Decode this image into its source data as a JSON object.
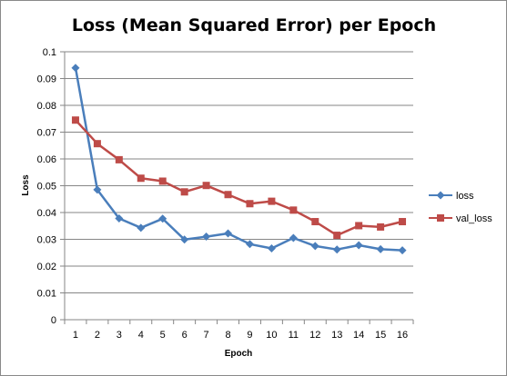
{
  "chart_data": {
    "type": "line",
    "title": "Loss (Mean Squared Error) per Epoch",
    "xlabel": "Epoch",
    "ylabel": "Loss",
    "x": [
      1,
      2,
      3,
      4,
      5,
      6,
      7,
      8,
      9,
      10,
      11,
      12,
      13,
      14,
      15,
      16
    ],
    "ylim": [
      0,
      0.1
    ],
    "yticks": [
      "0",
      "0.01",
      "0.02",
      "0.03",
      "0.04",
      "0.05",
      "0.06",
      "0.07",
      "0.08",
      "0.09",
      "0.1"
    ],
    "grid": "horizontal",
    "legend_position": "right",
    "series": [
      {
        "name": "loss",
        "color": "#4a7ebb",
        "marker": "diamond",
        "values": [
          0.094,
          0.0485,
          0.0378,
          0.0343,
          0.0377,
          0.0299,
          0.031,
          0.0322,
          0.0282,
          0.0266,
          0.0305,
          0.0275,
          0.0262,
          0.0278,
          0.0263,
          0.0259
        ]
      },
      {
        "name": "val_loss",
        "color": "#be4b48",
        "marker": "square",
        "values": [
          0.0745,
          0.0657,
          0.0597,
          0.0528,
          0.0517,
          0.0477,
          0.0501,
          0.0467,
          0.0433,
          0.0442,
          0.0409,
          0.0366,
          0.0315,
          0.0351,
          0.0346,
          0.0366
        ]
      }
    ]
  }
}
